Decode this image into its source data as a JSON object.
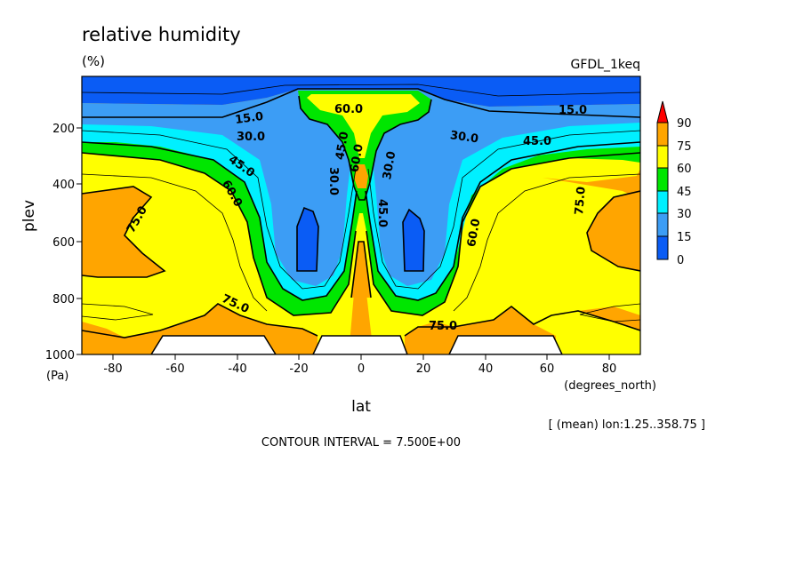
{
  "chart_data": {
    "type": "heatmap",
    "title": "relative humidity",
    "units": "(%)",
    "model_label": "GFDL_1keq",
    "xlabel": "lat",
    "x_units": "(degrees_north)",
    "ylabel": "plev",
    "y_units": "(Pa)",
    "xlim": [
      -90,
      90
    ],
    "ylim": [
      1000,
      0
    ],
    "x_ticks": [
      "-80",
      "-60",
      "-40",
      "-20",
      "0",
      "20",
      "40",
      "60",
      "80"
    ],
    "y_ticks": [
      "200",
      "400",
      "600",
      "800",
      "1000"
    ],
    "contour_labels": [
      "15.0",
      "15.0",
      "30.0",
      "30.0",
      "45.0",
      "45.0",
      "60.0",
      "60.0",
      "75.0",
      "75.0",
      "75.0",
      "75.0",
      "60.0",
      "45.0",
      "30.0",
      "30.0",
      "45.0",
      "60.0"
    ],
    "colorbar": {
      "levels": [
        "0",
        "15",
        "30",
        "45",
        "60",
        "75",
        "90"
      ],
      "colors": [
        "#0a5cf5",
        "#3c9df5",
        "#00f0ff",
        "#00e600",
        "#ffff00",
        "#ffa500",
        "#ff0000"
      ]
    },
    "note": "[ (mean) lon:1.25..358.75 ]",
    "contour_interval": "CONTOUR INTERVAL = 7.500E+00"
  }
}
